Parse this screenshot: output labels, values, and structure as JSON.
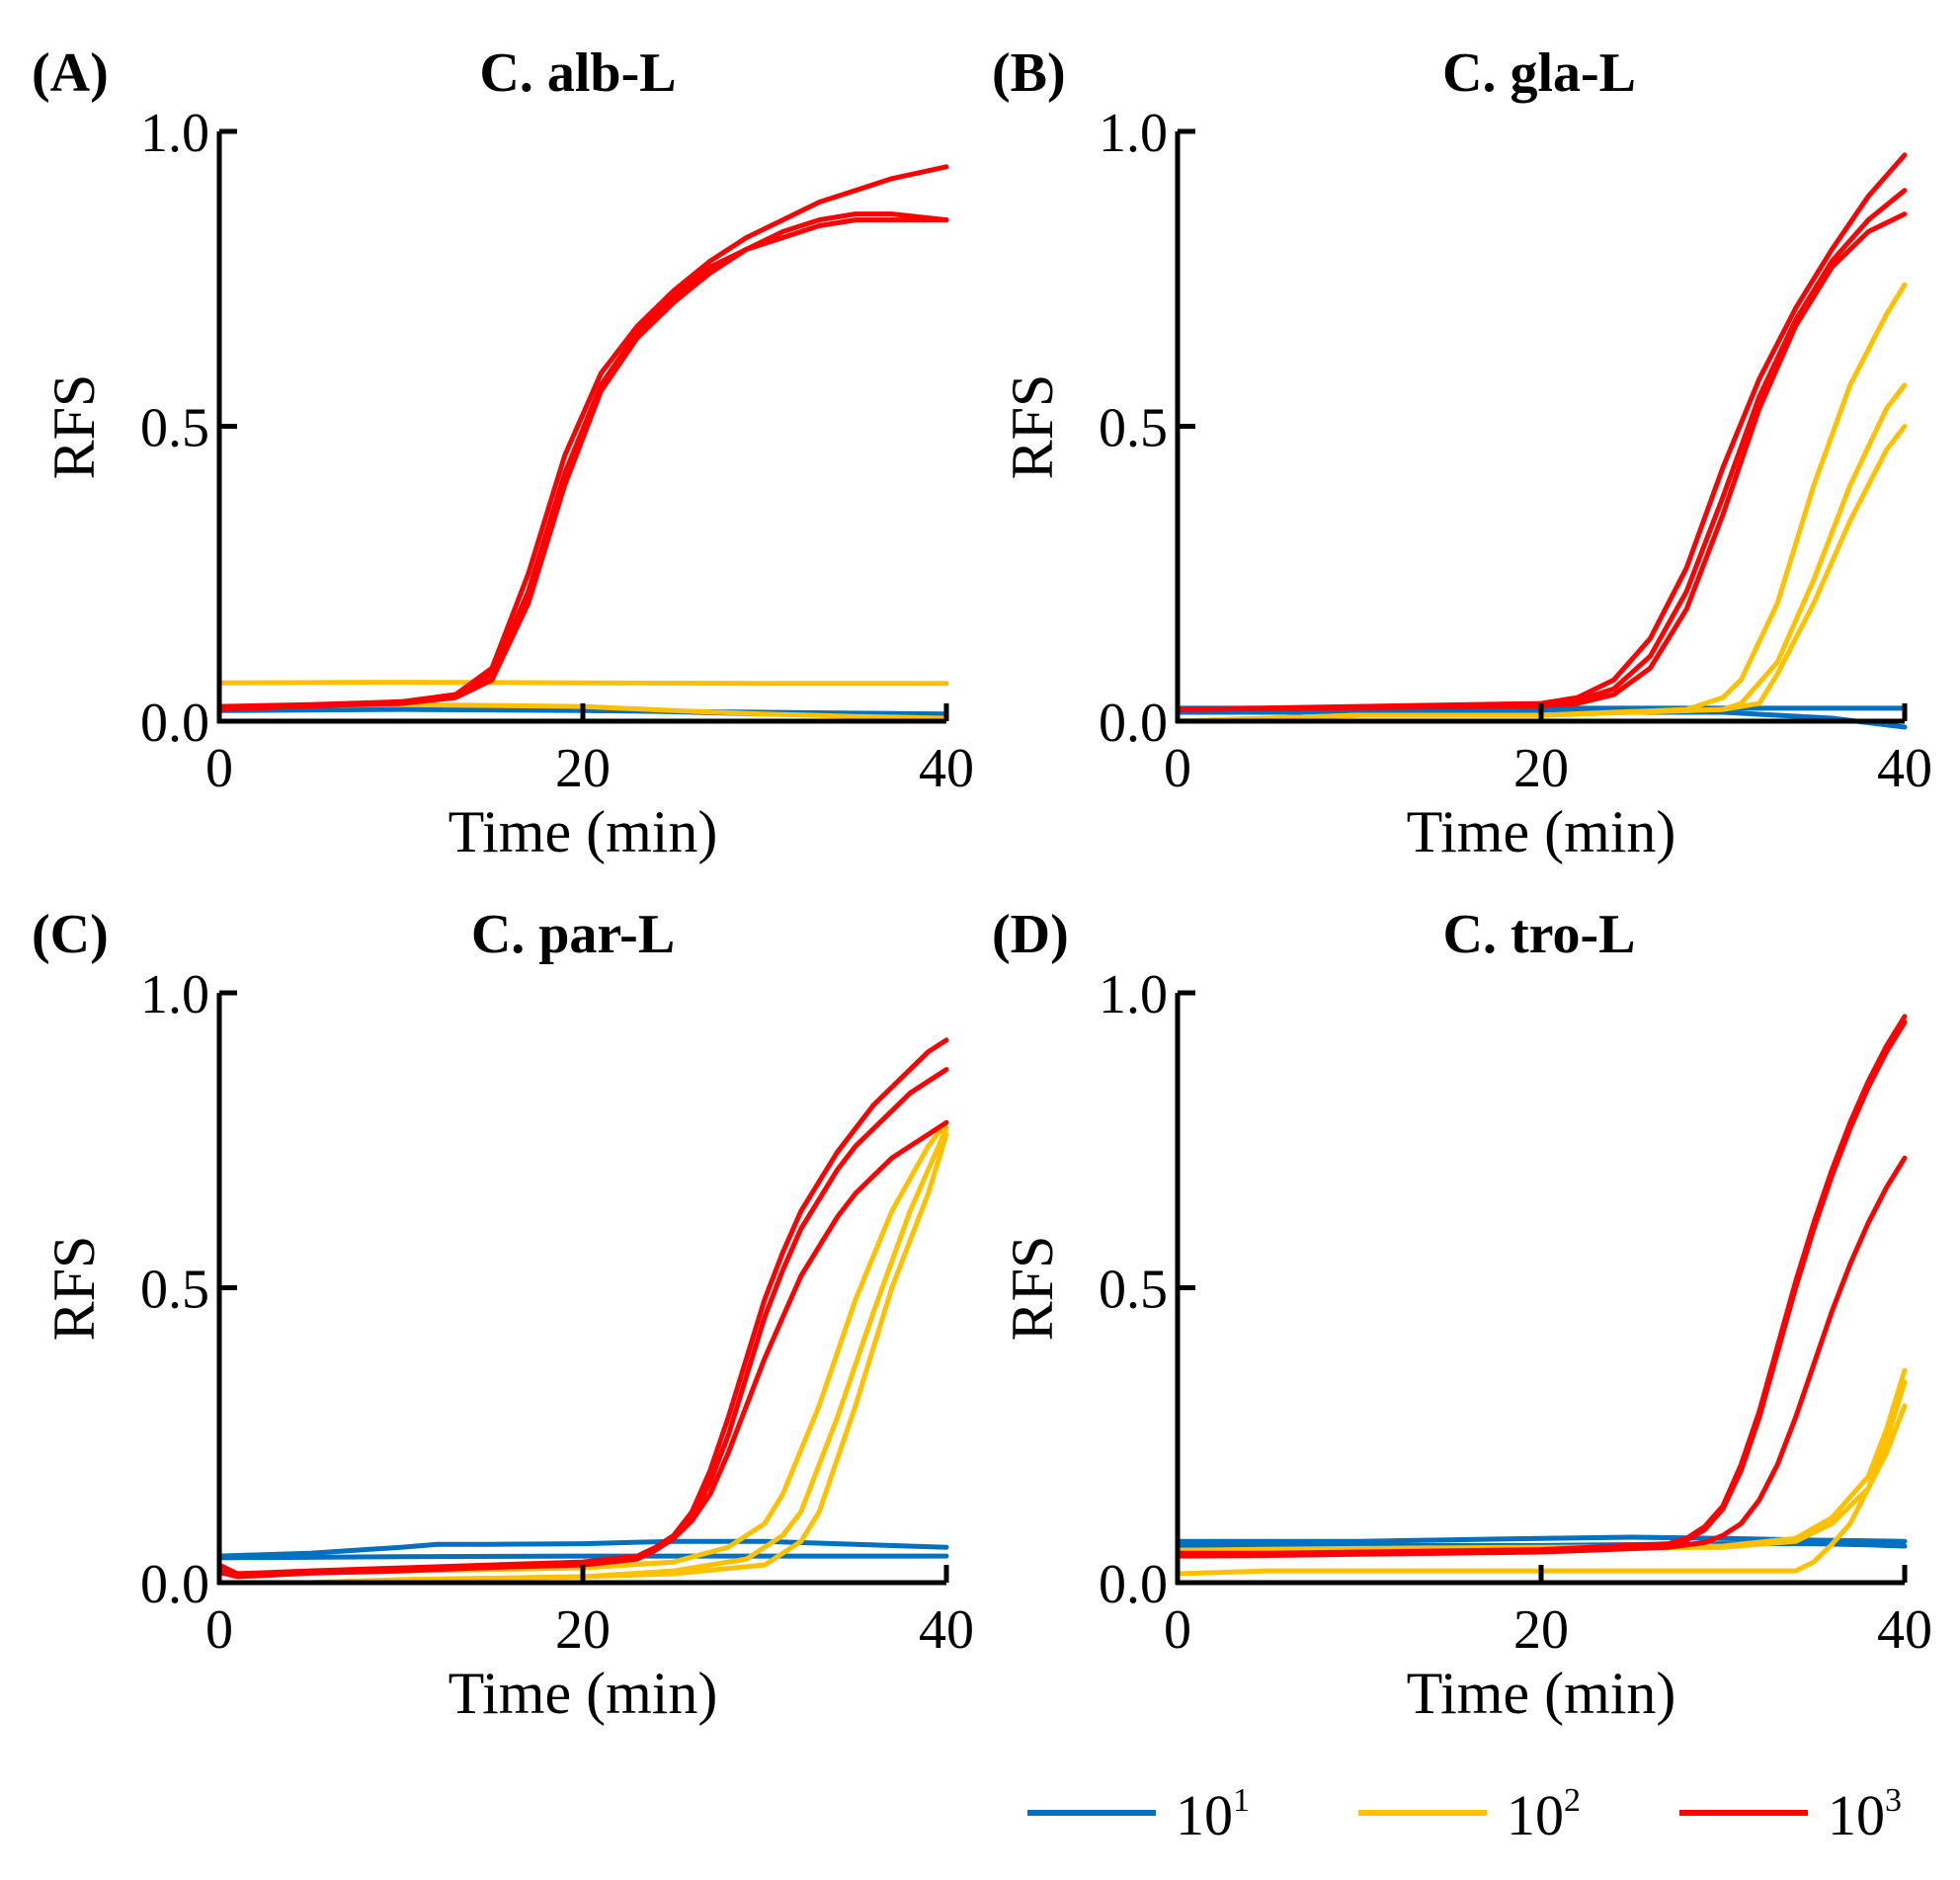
{
  "chart_data": [
    {
      "type": "line",
      "panel_label": "(A)",
      "title": "C. alb-L",
      "xlabel": "Time (min)",
      "ylabel": "RFS",
      "xlim": [
        0,
        40
      ],
      "ylim": [
        0,
        1
      ],
      "xticks": [
        0,
        20,
        40
      ],
      "yticks": [
        "0.0",
        "0.5",
        "1.0"
      ],
      "series": [
        {
          "group": "10^1",
          "x": [
            0,
            10,
            20,
            30,
            35,
            40
          ],
          "y": [
            0.02,
            0.025,
            0.02,
            0.012,
            0.012,
            0.008
          ]
        },
        {
          "group": "10^1",
          "x": [
            0,
            10,
            20,
            30,
            40
          ],
          "y": [
            0.018,
            0.02,
            0.018,
            0.015,
            0.012
          ]
        },
        {
          "group": "10^2",
          "x": [
            0,
            10,
            20,
            30,
            40
          ],
          "y": [
            0.065,
            0.066,
            0.065,
            0.064,
            0.064
          ]
        },
        {
          "group": "10^2",
          "x": [
            0,
            10,
            20,
            25,
            30,
            35,
            40
          ],
          "y": [
            0.025,
            0.028,
            0.025,
            0.018,
            0.012,
            0.008,
            0.005
          ]
        },
        {
          "group": "10^3",
          "x": [
            0,
            5,
            10,
            13,
            15,
            17,
            19,
            21,
            23,
            25,
            27,
            29,
            31,
            33,
            35,
            37,
            40
          ],
          "y": [
            0.025,
            0.028,
            0.033,
            0.045,
            0.09,
            0.25,
            0.45,
            0.59,
            0.67,
            0.73,
            0.78,
            0.82,
            0.85,
            0.88,
            0.9,
            0.92,
            0.94
          ]
        },
        {
          "group": "10^3",
          "x": [
            0,
            5,
            10,
            13,
            15,
            17,
            19,
            21,
            23,
            25,
            27,
            29,
            31,
            33,
            35,
            37,
            40
          ],
          "y": [
            0.022,
            0.027,
            0.032,
            0.045,
            0.08,
            0.22,
            0.42,
            0.57,
            0.66,
            0.72,
            0.77,
            0.8,
            0.83,
            0.85,
            0.86,
            0.86,
            0.85
          ]
        },
        {
          "group": "10^3",
          "x": [
            0,
            5,
            10,
            13,
            15,
            17,
            19,
            21,
            23,
            25,
            27,
            29,
            31,
            33,
            35,
            37,
            40
          ],
          "y": [
            0.02,
            0.026,
            0.03,
            0.04,
            0.07,
            0.2,
            0.4,
            0.56,
            0.65,
            0.71,
            0.76,
            0.8,
            0.82,
            0.84,
            0.85,
            0.85,
            0.85
          ]
        }
      ]
    },
    {
      "type": "line",
      "panel_label": "(B)",
      "title": "C. gla-L",
      "xlabel": "Time (min)",
      "ylabel": "RFS",
      "xlim": [
        0,
        40
      ],
      "ylim": [
        0,
        1
      ],
      "xticks": [
        0,
        20,
        40
      ],
      "yticks": [
        "0.0",
        "0.5",
        "1.0"
      ],
      "series": [
        {
          "group": "10^1",
          "x": [
            0,
            10,
            20,
            30,
            40
          ],
          "y": [
            0.022,
            0.022,
            0.022,
            0.022,
            0.022
          ]
        },
        {
          "group": "10^1",
          "x": [
            0,
            10,
            20,
            30,
            33,
            36,
            40
          ],
          "y": [
            0.015,
            0.015,
            0.015,
            0.015,
            0.01,
            0.005,
            -0.01
          ]
        },
        {
          "group": "10^2",
          "x": [
            0,
            10,
            20,
            28,
            30,
            31,
            33,
            35,
            37,
            39,
            40
          ],
          "y": [
            0.0,
            0.01,
            0.01,
            0.02,
            0.04,
            0.07,
            0.2,
            0.4,
            0.57,
            0.69,
            0.74
          ]
        },
        {
          "group": "10^2",
          "x": [
            0,
            10,
            20,
            30,
            31,
            33,
            35,
            37,
            39,
            40
          ],
          "y": [
            0.0,
            0.01,
            0.01,
            0.02,
            0.03,
            0.1,
            0.24,
            0.4,
            0.53,
            0.57
          ]
        },
        {
          "group": "10^2",
          "x": [
            0,
            10,
            20,
            30,
            32,
            33,
            35,
            37,
            39,
            40
          ],
          "y": [
            0.0,
            0.01,
            0.01,
            0.02,
            0.03,
            0.08,
            0.2,
            0.34,
            0.46,
            0.5
          ]
        },
        {
          "group": "10^3",
          "x": [
            0,
            10,
            20,
            22,
            24,
            26,
            28,
            30,
            32,
            34,
            36,
            38,
            40
          ],
          "y": [
            0.02,
            0.025,
            0.03,
            0.04,
            0.07,
            0.14,
            0.26,
            0.43,
            0.58,
            0.7,
            0.8,
            0.89,
            0.96
          ]
        },
        {
          "group": "10^3",
          "x": [
            0,
            10,
            20,
            22,
            24,
            26,
            28,
            30,
            32,
            34,
            36,
            38,
            40
          ],
          "y": [
            0.02,
            0.024,
            0.028,
            0.035,
            0.055,
            0.11,
            0.22,
            0.38,
            0.55,
            0.68,
            0.78,
            0.85,
            0.9
          ]
        },
        {
          "group": "10^3",
          "x": [
            0,
            10,
            20,
            22,
            24,
            26,
            28,
            30,
            32,
            34,
            36,
            38,
            40
          ],
          "y": [
            0.02,
            0.023,
            0.026,
            0.03,
            0.045,
            0.09,
            0.19,
            0.35,
            0.53,
            0.67,
            0.77,
            0.83,
            0.86
          ]
        }
      ]
    },
    {
      "type": "line",
      "panel_label": "(C)",
      "title": "C. par-L",
      "xlabel": "Time (min)",
      "ylabel": "RFS",
      "xlim": [
        0,
        40
      ],
      "ylim": [
        0,
        1
      ],
      "xticks": [
        0,
        20,
        40
      ],
      "yticks": [
        "0.0",
        "0.5",
        "1.0"
      ],
      "series": [
        {
          "group": "10^1",
          "x": [
            0,
            5,
            10,
            12,
            15,
            20,
            25,
            30,
            35,
            40
          ],
          "y": [
            0.045,
            0.05,
            0.06,
            0.065,
            0.065,
            0.066,
            0.07,
            0.07,
            0.065,
            0.06
          ]
        },
        {
          "group": "10^1",
          "x": [
            0,
            10,
            20,
            30,
            40
          ],
          "y": [
            0.042,
            0.044,
            0.045,
            0.045,
            0.045
          ]
        },
        {
          "group": "10^2",
          "x": [
            0,
            5,
            10,
            20,
            25,
            28,
            30,
            31,
            33,
            35,
            37,
            39,
            40
          ],
          "y": [
            0.015,
            0.017,
            0.02,
            0.025,
            0.035,
            0.06,
            0.1,
            0.15,
            0.3,
            0.48,
            0.63,
            0.74,
            0.78
          ]
        },
        {
          "group": "10^2",
          "x": [
            5,
            10,
            20,
            25,
            29,
            31,
            32,
            34,
            36,
            38,
            40
          ],
          "y": [
            0.0,
            0.005,
            0.01,
            0.02,
            0.04,
            0.08,
            0.12,
            0.28,
            0.46,
            0.63,
            0.77
          ]
        },
        {
          "group": "10^2",
          "x": [
            5,
            10,
            20,
            25,
            30,
            32,
            33,
            35,
            37,
            39,
            40
          ],
          "y": [
            0.0,
            0.005,
            0.01,
            0.015,
            0.03,
            0.07,
            0.12,
            0.3,
            0.5,
            0.66,
            0.76
          ]
        },
        {
          "group": "10^3",
          "x": [
            0,
            1,
            5,
            10,
            15,
            20,
            23,
            24,
            25,
            26,
            27,
            28,
            29,
            30,
            31,
            32,
            33,
            34,
            35,
            36,
            37,
            38,
            39,
            40
          ],
          "y": [
            0.03,
            0.015,
            0.02,
            0.025,
            0.03,
            0.035,
            0.045,
            0.06,
            0.08,
            0.12,
            0.19,
            0.28,
            0.38,
            0.48,
            0.56,
            0.63,
            0.68,
            0.73,
            0.77,
            0.81,
            0.84,
            0.87,
            0.9,
            0.92
          ]
        },
        {
          "group": "10^3",
          "x": [
            0,
            1,
            5,
            10,
            15,
            20,
            23,
            24,
            25,
            26,
            27,
            28,
            29,
            30,
            31,
            32,
            33,
            34,
            35,
            36,
            37,
            38,
            39,
            40
          ],
          "y": [
            0.02,
            0.012,
            0.018,
            0.022,
            0.028,
            0.033,
            0.043,
            0.058,
            0.078,
            0.11,
            0.17,
            0.25,
            0.35,
            0.45,
            0.53,
            0.6,
            0.65,
            0.7,
            0.74,
            0.77,
            0.8,
            0.83,
            0.85,
            0.87
          ]
        },
        {
          "group": "10^3",
          "x": [
            0,
            1,
            5,
            10,
            15,
            20,
            23,
            24,
            25,
            26,
            27,
            28,
            29,
            30,
            31,
            32,
            33,
            34,
            35,
            36,
            37,
            38,
            39,
            40
          ],
          "y": [
            0.018,
            0.01,
            0.016,
            0.02,
            0.026,
            0.03,
            0.04,
            0.055,
            0.075,
            0.105,
            0.15,
            0.22,
            0.3,
            0.38,
            0.45,
            0.52,
            0.57,
            0.62,
            0.66,
            0.69,
            0.72,
            0.74,
            0.76,
            0.78
          ]
        }
      ]
    },
    {
      "type": "line",
      "panel_label": "(D)",
      "title": "C. tro-L",
      "xlabel": "Time (min)",
      "ylabel": "RFS",
      "xlim": [
        0,
        40
      ],
      "ylim": [
        0,
        1
      ],
      "xticks": [
        0,
        20,
        40
      ],
      "yticks": [
        "0.0",
        "0.5",
        "1.0"
      ],
      "series": [
        {
          "group": "10^1",
          "x": [
            0,
            10,
            20,
            25,
            30,
            35,
            40
          ],
          "y": [
            0.07,
            0.07,
            0.075,
            0.077,
            0.075,
            0.072,
            0.07
          ]
        },
        {
          "group": "10^1",
          "x": [
            0,
            10,
            20,
            30,
            35,
            38,
            40
          ],
          "y": [
            0.063,
            0.063,
            0.063,
            0.066,
            0.066,
            0.064,
            0.062
          ]
        },
        {
          "group": "10^2",
          "x": [
            0,
            10,
            20,
            30,
            34,
            36,
            38,
            39,
            40
          ],
          "y": [
            0.055,
            0.058,
            0.06,
            0.062,
            0.075,
            0.11,
            0.18,
            0.26,
            0.36
          ]
        },
        {
          "group": "10^2",
          "x": [
            0,
            10,
            20,
            30,
            34,
            36,
            38,
            39,
            40
          ],
          "y": [
            0.05,
            0.055,
            0.058,
            0.06,
            0.07,
            0.1,
            0.16,
            0.24,
            0.34
          ]
        },
        {
          "group": "10^2",
          "x": [
            0,
            5,
            10,
            20,
            30,
            34,
            35,
            36,
            37,
            38,
            39,
            40
          ],
          "y": [
            0.015,
            0.02,
            0.02,
            0.02,
            0.02,
            0.02,
            0.035,
            0.065,
            0.1,
            0.16,
            0.22,
            0.3
          ]
        },
        {
          "group": "10^3",
          "x": [
            0,
            5,
            10,
            20,
            27,
            28,
            29,
            30,
            31,
            32,
            33,
            34,
            35,
            36,
            37,
            38,
            39,
            40
          ],
          "y": [
            0.05,
            0.05,
            0.052,
            0.056,
            0.066,
            0.075,
            0.095,
            0.13,
            0.2,
            0.29,
            0.4,
            0.51,
            0.61,
            0.7,
            0.78,
            0.85,
            0.91,
            0.96
          ]
        },
        {
          "group": "10^3",
          "x": [
            0,
            5,
            10,
            20,
            27,
            28,
            29,
            30,
            31,
            32,
            33,
            34,
            35,
            36,
            37,
            38,
            39,
            40
          ],
          "y": [
            0.048,
            0.049,
            0.05,
            0.054,
            0.064,
            0.072,
            0.09,
            0.125,
            0.19,
            0.28,
            0.39,
            0.5,
            0.6,
            0.69,
            0.77,
            0.84,
            0.9,
            0.95
          ]
        },
        {
          "group": "10^3",
          "x": [
            0,
            5,
            10,
            20,
            27,
            29,
            30,
            31,
            32,
            33,
            34,
            35,
            36,
            37,
            38,
            39,
            40
          ],
          "y": [
            0.045,
            0.046,
            0.048,
            0.052,
            0.06,
            0.068,
            0.08,
            0.1,
            0.14,
            0.2,
            0.28,
            0.37,
            0.46,
            0.54,
            0.61,
            0.67,
            0.72
          ]
        }
      ]
    }
  ],
  "legend": {
    "placement": "bottom-right",
    "items": [
      {
        "base": "10",
        "sup": "1",
        "color": "#0070C0"
      },
      {
        "base": "10",
        "sup": "2",
        "color": "#FFC000"
      },
      {
        "base": "10",
        "sup": "3",
        "color": "#FF0000"
      }
    ]
  },
  "colors": {
    "10^1": "#0070C0",
    "10^2": "#FFC000",
    "10^3": "#FF0000",
    "axis": "#000000"
  }
}
